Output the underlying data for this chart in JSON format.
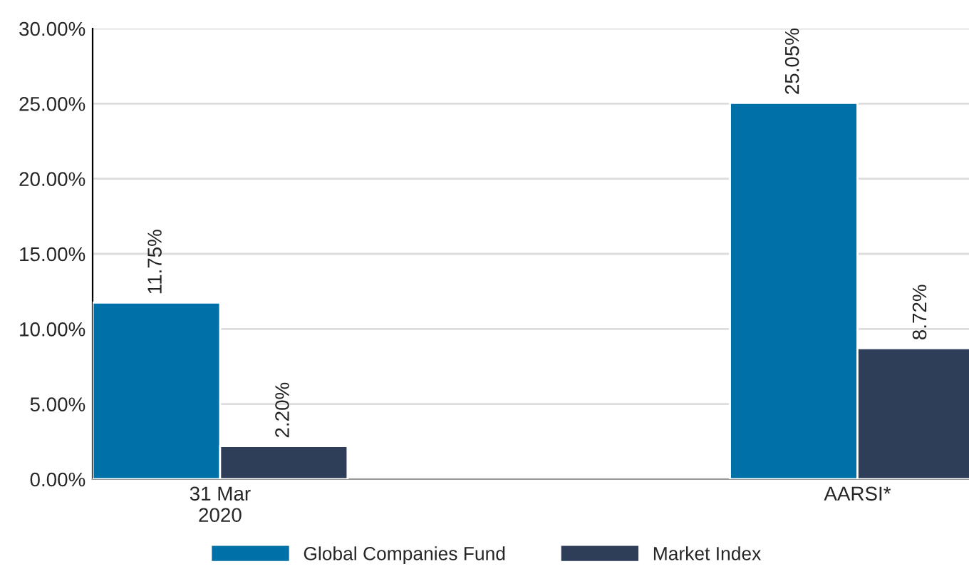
{
  "chart_data": {
    "type": "bar",
    "categories": [
      "31 Mar\n2020",
      "AARSI*"
    ],
    "series": [
      {
        "name": "Global Companies Fund",
        "color": "#0070a8",
        "values": [
          11.75,
          25.05
        ],
        "value_labels": [
          "11.75%",
          "25.05%"
        ]
      },
      {
        "name": "Market Index",
        "color": "#2f3e58",
        "values": [
          2.2,
          8.72
        ],
        "value_labels": [
          "2.20%",
          "8.72%"
        ]
      }
    ],
    "ylim": [
      0,
      30
    ],
    "yticks": [
      {
        "value": 0,
        "label": "0.00%"
      },
      {
        "value": 5,
        "label": "5.00%"
      },
      {
        "value": 10,
        "label": "10.00%"
      },
      {
        "value": 15,
        "label": "15.00%"
      },
      {
        "value": 20,
        "label": "20.00%"
      },
      {
        "value": 25,
        "label": "25.00%"
      },
      {
        "value": 30,
        "label": "30.00%"
      }
    ],
    "grid": "y",
    "legend": "bottom"
  }
}
